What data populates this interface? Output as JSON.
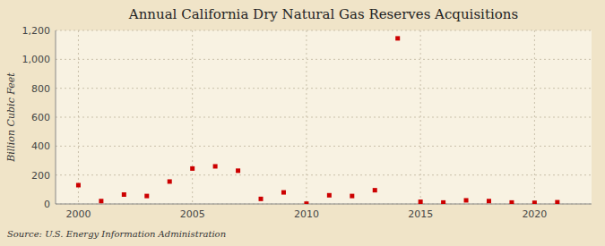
{
  "chart_data": {
    "type": "scatter",
    "title": "Annual California Dry Natural Gas Reserves Acquisitions",
    "y_label": "Billion Cubic Feet",
    "annotations": [
      "Source: U.S. Energy Information Administration"
    ],
    "x": [
      2000,
      2001,
      2002,
      2003,
      2004,
      2005,
      2006,
      2007,
      2008,
      2009,
      2010,
      2011,
      2012,
      2013,
      2014,
      2015,
      2016,
      2017,
      2018,
      2019,
      2020,
      2021
    ],
    "values": [
      130,
      20,
      65,
      55,
      155,
      245,
      260,
      230,
      35,
      80,
      2,
      60,
      55,
      95,
      1145,
      15,
      10,
      25,
      20,
      10,
      8,
      12
    ],
    "color": "#cc0000",
    "marker": "square",
    "xlim": [
      1999.0,
      2022.5
    ],
    "ylim": [
      0,
      1200
    ],
    "xticks": [
      2000,
      2005,
      2010,
      2015,
      2020
    ],
    "yticks": [
      0,
      200,
      400,
      600,
      800,
      {
        "value": 1000,
        "label": "1,000"
      },
      {
        "value": 1200,
        "label": "1,200"
      }
    ],
    "grid": true
  }
}
